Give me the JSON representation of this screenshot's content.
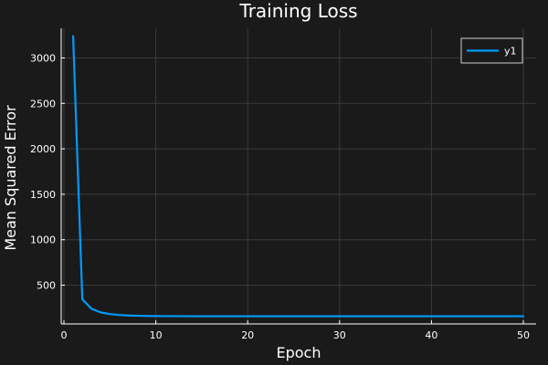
{
  "chart_data": {
    "type": "line",
    "title": "Training Loss",
    "xlabel": "Epoch",
    "ylabel": "Mean Squared Error",
    "xlim": [
      0,
      50
    ],
    "ylim": [
      100,
      3300
    ],
    "grid": true,
    "legend_position": "top-right",
    "background_color": "#1a1a1a",
    "series": [
      {
        "name": "y1",
        "color": "#009af9",
        "x": [
          1,
          2,
          3,
          4,
          5,
          6,
          7,
          8,
          9,
          10,
          11,
          12,
          13,
          14,
          15,
          16,
          17,
          18,
          19,
          20,
          21,
          22,
          23,
          24,
          25,
          26,
          27,
          28,
          29,
          30,
          31,
          32,
          33,
          34,
          35,
          36,
          37,
          38,
          39,
          40,
          41,
          42,
          43,
          44,
          45,
          46,
          47,
          48,
          49,
          50
        ],
        "y": [
          3240,
          345,
          240,
          200,
          182,
          172,
          166,
          163,
          161,
          160,
          159,
          159,
          158,
          158,
          158,
          158,
          158,
          158,
          158,
          158,
          158,
          158,
          158,
          158,
          158,
          158,
          158,
          158,
          158,
          158,
          158,
          158,
          158,
          158,
          158,
          158,
          158,
          158,
          158,
          158,
          158,
          158,
          158,
          158,
          158,
          158,
          158,
          158,
          158,
          158
        ]
      }
    ],
    "x_ticks": [
      {
        "value": 0,
        "label": "0"
      },
      {
        "value": 10,
        "label": "10"
      },
      {
        "value": 20,
        "label": "20"
      },
      {
        "value": 30,
        "label": "30"
      },
      {
        "value": 40,
        "label": "40"
      },
      {
        "value": 50,
        "label": "50"
      }
    ],
    "y_ticks": [
      {
        "value": 500,
        "label": "500"
      },
      {
        "value": 1000,
        "label": "1000"
      },
      {
        "value": 1500,
        "label": "1500"
      },
      {
        "value": 2000,
        "label": "2000"
      },
      {
        "value": 2500,
        "label": "2500"
      },
      {
        "value": 3000,
        "label": "3000"
      }
    ]
  }
}
